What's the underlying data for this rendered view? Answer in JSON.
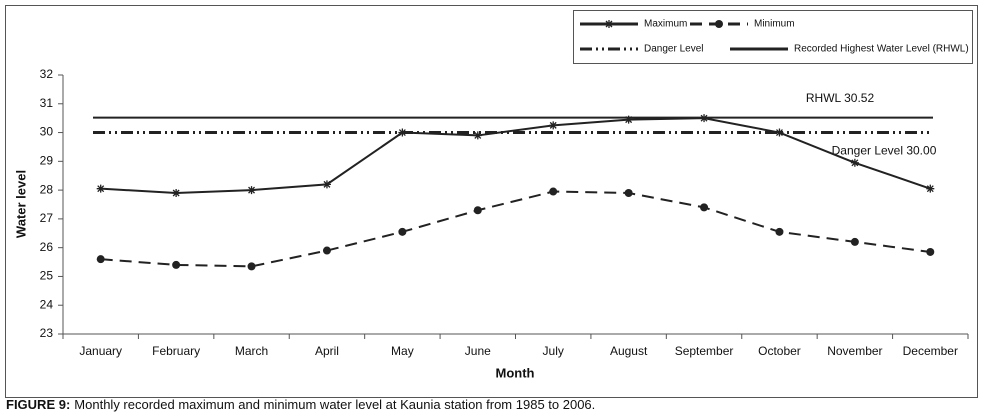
{
  "chart_data": {
    "type": "line",
    "x_label": "Month",
    "y_label": "Water level",
    "categories": [
      "January",
      "February",
      "March",
      "April",
      "May",
      "June",
      "July",
      "August",
      "September",
      "October",
      "November",
      "December"
    ],
    "series": [
      {
        "name": "Maximum",
        "color": "#222222",
        "style": "solid",
        "marker": "star",
        "values": [
          28.05,
          27.9,
          28.0,
          28.2,
          30.0,
          29.9,
          30.25,
          30.45,
          30.5,
          30.0,
          28.95,
          28.05
        ]
      },
      {
        "name": "Minimum",
        "color": "#222222",
        "style": "dash",
        "marker": "circle",
        "values": [
          25.6,
          25.4,
          25.35,
          25.9,
          26.55,
          27.3,
          27.95,
          27.9,
          27.4,
          26.55,
          26.2,
          25.85
        ]
      }
    ],
    "reference_lines": [
      {
        "name": "Danger Level",
        "value": 30.0,
        "label": "Danger Level 30.00",
        "style": "dash-dot-dot",
        "color": "#222222"
      },
      {
        "name": "Recorded Highest Water Level (RHWL)",
        "value": 30.52,
        "label": "RHWL 30.52",
        "style": "solid",
        "color": "#222222"
      }
    ],
    "ylim": [
      23,
      32
    ],
    "yticks": [
      23,
      24,
      25,
      26,
      27,
      28,
      29,
      30,
      31,
      32
    ],
    "grid": false,
    "legend_position": "top-right",
    "caption_label": "FIGURE 9:",
    "caption": "Monthly recorded maximum and minimum water level at Kaunia station from 1985 to 2006."
  }
}
